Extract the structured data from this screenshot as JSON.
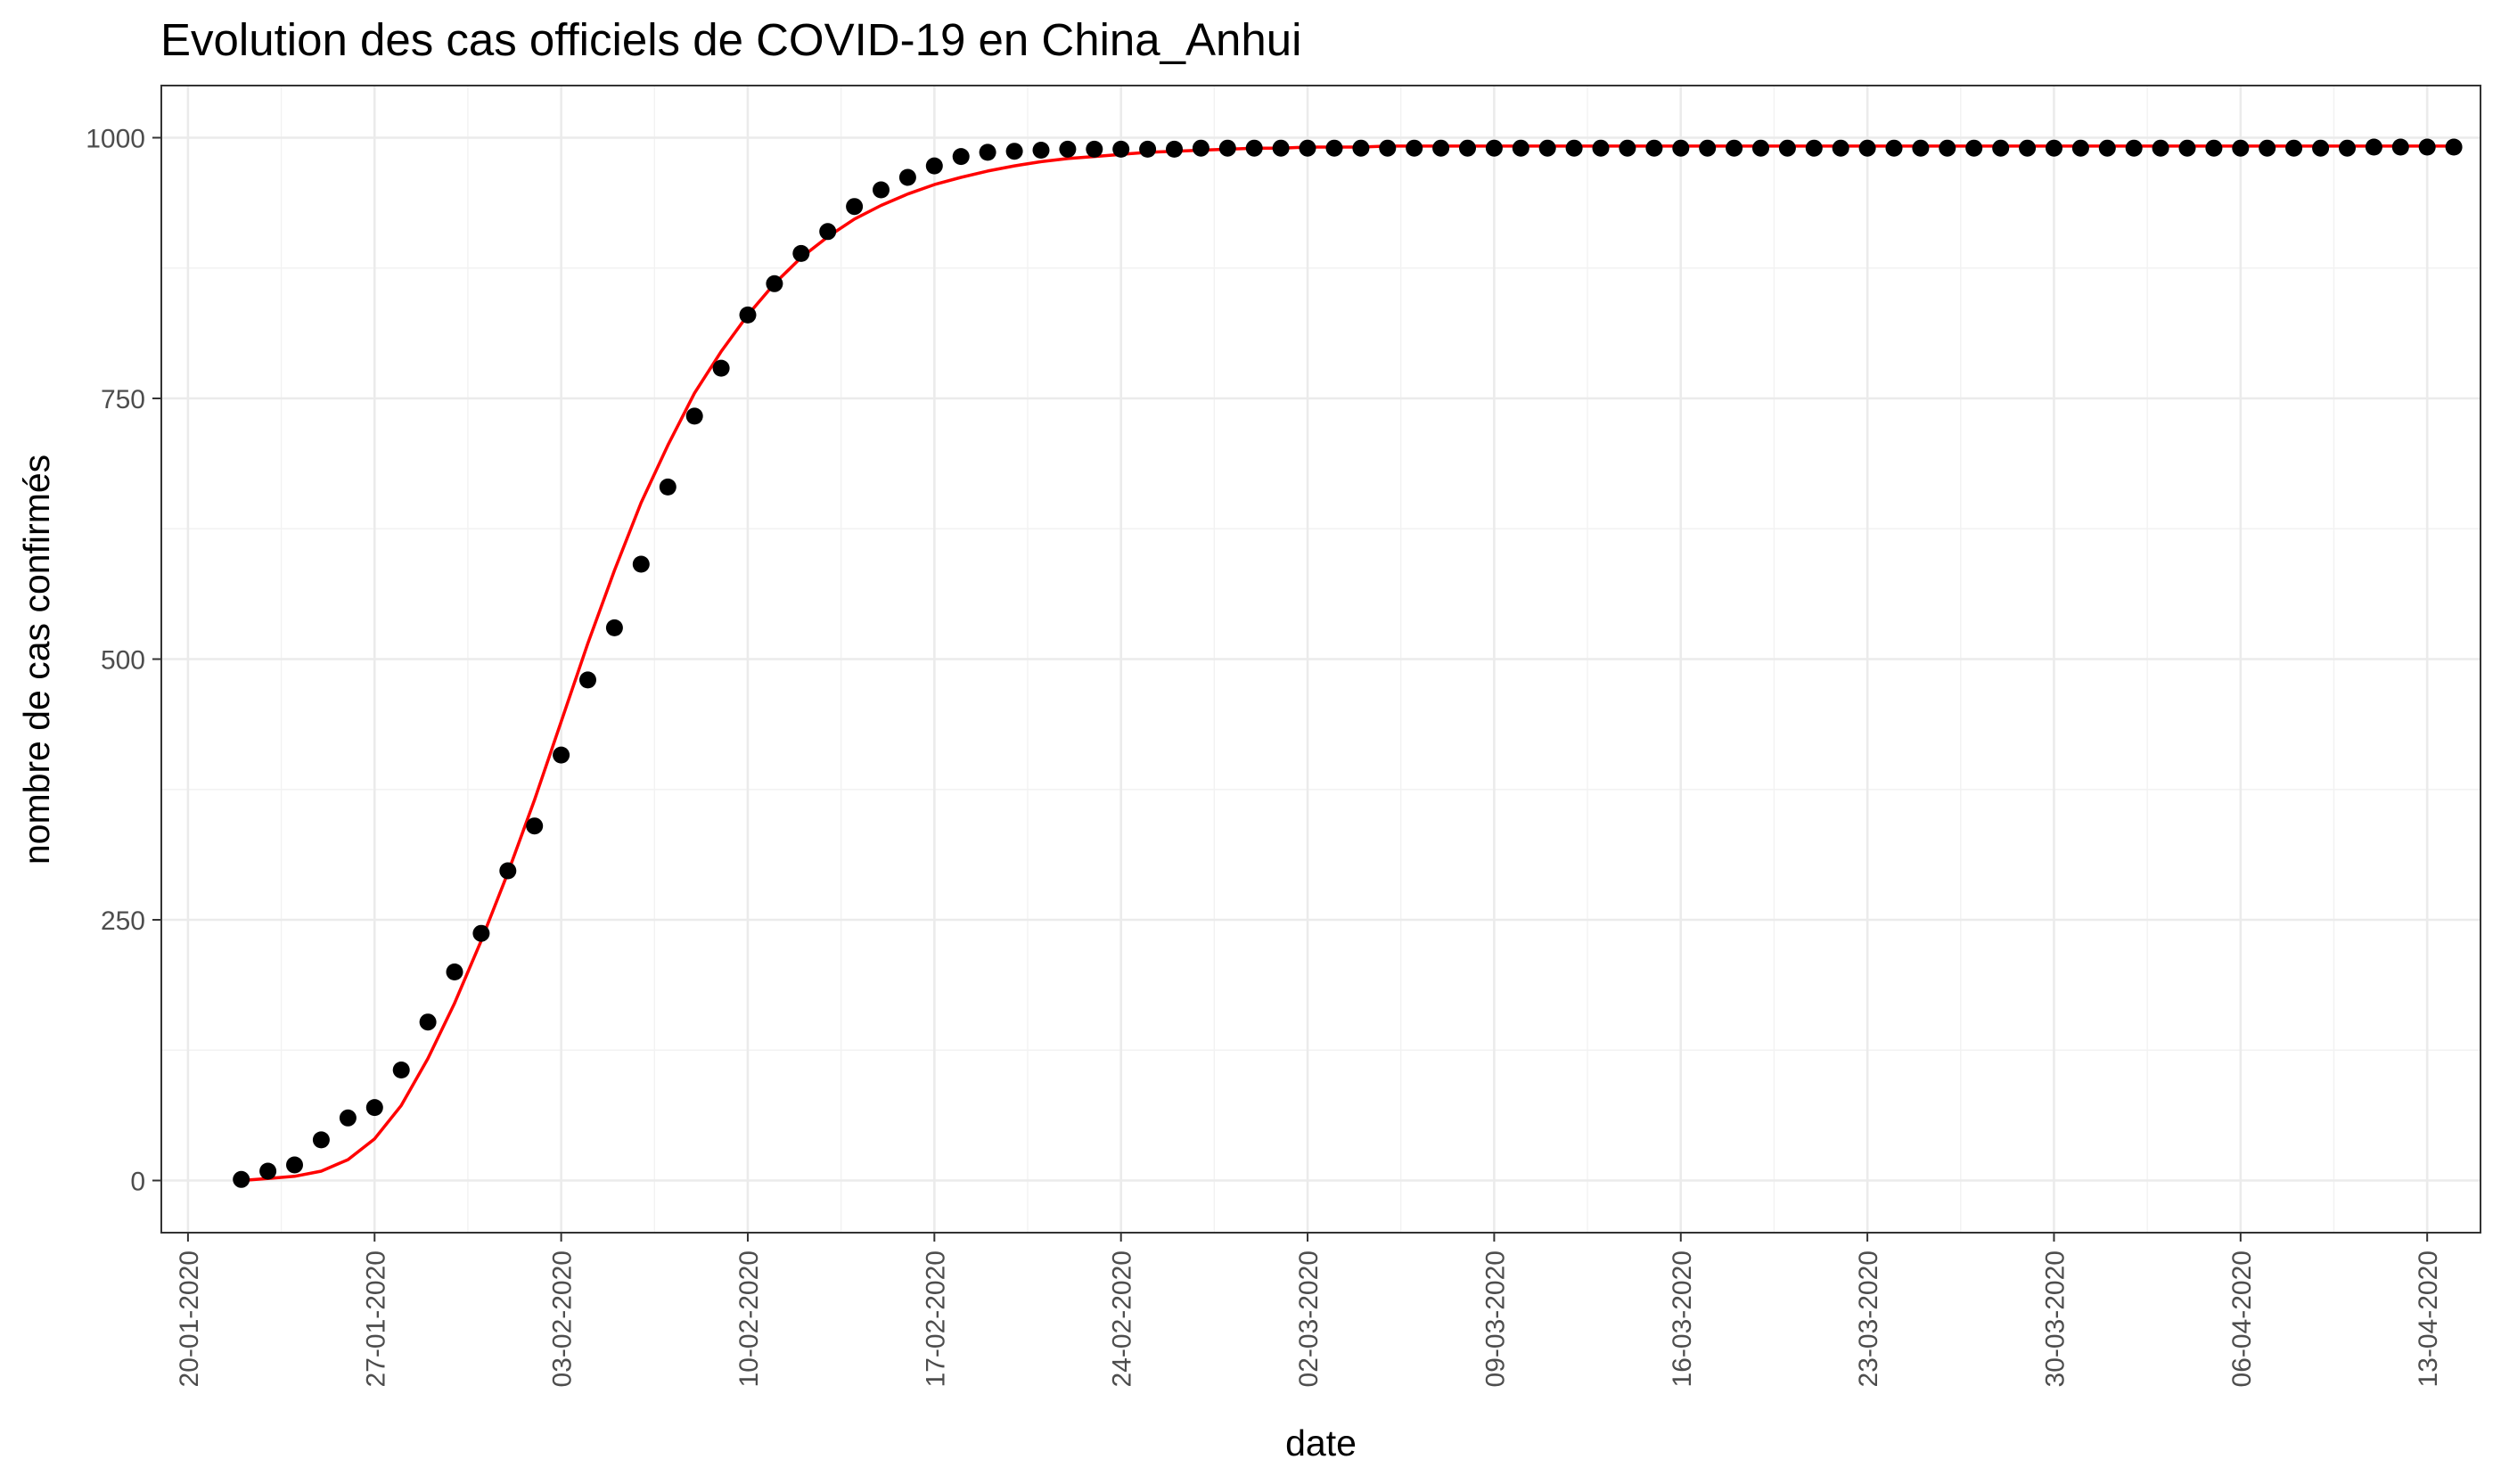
{
  "chart_data": {
    "type": "scatter",
    "title": "Evolution des cas officiels de COVID-19 en China_Anhui",
    "xlabel": "date",
    "ylabel": "nombre de cas confirmés",
    "ylim": [
      -50,
      1050
    ],
    "xlim": [
      "2020-01-19",
      "2020-04-15"
    ],
    "y_ticks": [
      0,
      250,
      500,
      750,
      1000
    ],
    "y_tick_labels": [
      "0",
      "250",
      "500",
      "750",
      "1000"
    ],
    "x_ticks": [
      "2020-01-20",
      "2020-01-27",
      "2020-02-03",
      "2020-02-10",
      "2020-02-17",
      "2020-02-24",
      "2020-03-02",
      "2020-03-09",
      "2020-03-16",
      "2020-03-23",
      "2020-03-30",
      "2020-04-06",
      "2020-04-13"
    ],
    "x_tick_labels": [
      "20-01-2020",
      "27-01-2020",
      "03-02-2020",
      "10-02-2020",
      "17-02-2020",
      "24-02-2020",
      "02-03-2020",
      "09-03-2020",
      "16-03-2020",
      "23-03-2020",
      "30-03-2020",
      "06-04-2020",
      "13-04-2020"
    ],
    "grid": true,
    "series": [
      {
        "kind": "points",
        "color": "#000000",
        "x_start": "2020-01-22",
        "values": [
          1,
          9,
          15,
          39,
          60,
          70,
          106,
          152,
          200,
          237,
          297,
          340,
          408,
          480,
          530,
          591,
          665,
          733,
          779,
          830,
          860,
          889,
          910,
          934,
          950,
          962,
          973,
          982,
          986,
          987,
          988,
          989,
          989,
          989,
          989,
          989,
          990,
          990,
          990,
          990,
          990,
          990,
          990,
          990,
          990,
          990,
          990,
          990,
          990,
          990,
          990,
          990,
          990,
          990,
          990,
          990,
          990,
          990,
          990,
          990,
          990,
          990,
          990,
          990,
          990,
          990,
          990,
          990,
          990,
          990,
          990,
          990,
          990,
          990,
          990,
          990,
          990,
          990,
          990,
          990,
          991,
          991,
          991,
          991
        ]
      },
      {
        "kind": "line",
        "color": "#ff0000",
        "x_start": "2020-01-22",
        "values": [
          0,
          2,
          4,
          9,
          20,
          40,
          72,
          117,
          170,
          230,
          295,
          365,
          440,
          515,
          585,
          650,
          705,
          755,
          795,
          830,
          860,
          885,
          905,
          922,
          935,
          946,
          955,
          962,
          968,
          973,
          977,
          980,
          982,
          984,
          986,
          987,
          988,
          989,
          990,
          990,
          991,
          991,
          991,
          992,
          992,
          992,
          992,
          992,
          992,
          992,
          992,
          992,
          992,
          992,
          992,
          992,
          992,
          992,
          992,
          992,
          992,
          992,
          992,
          992,
          992,
          992,
          992,
          992,
          992,
          992,
          992,
          992,
          992,
          992,
          992,
          992,
          992,
          992,
          992,
          992,
          992,
          992,
          992,
          992
        ]
      }
    ]
  }
}
